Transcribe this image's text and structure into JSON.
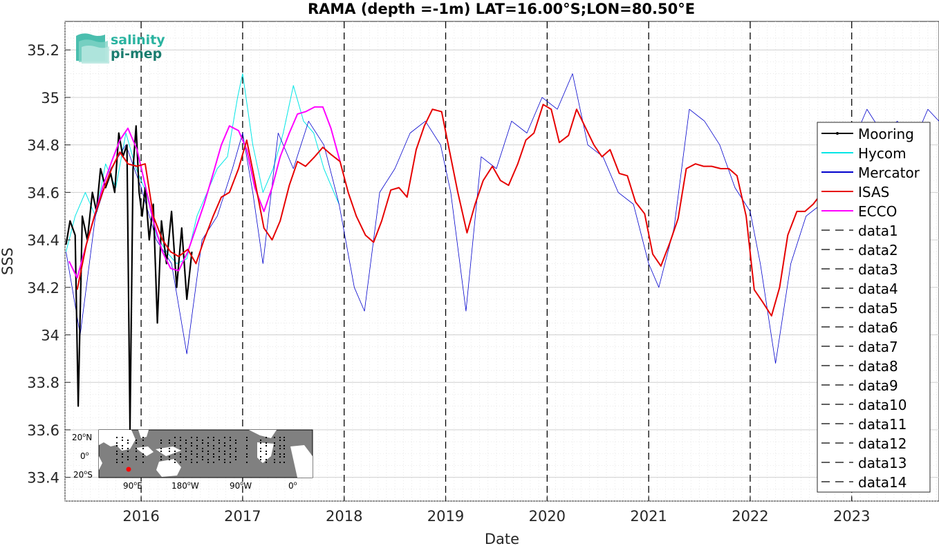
{
  "chart_data": {
    "type": "line",
    "title": "RAMA (depth =-1m) LAT=16.00°S;LON=80.50°E",
    "xlabel": "Date",
    "ylabel": "SSS",
    "xlim": [
      2015.25,
      2023.86
    ],
    "ylim": [
      33.3,
      35.32
    ],
    "x_tick_labels": [
      "2016",
      "2017",
      "2018",
      "2019",
      "2020",
      "2021",
      "2022",
      "2023"
    ],
    "x_ticks": [
      2016,
      2017,
      2018,
      2019,
      2020,
      2021,
      2022,
      2023
    ],
    "y_ticks": [
      33.4,
      33.6,
      33.8,
      34,
      34.2,
      34.4,
      34.6,
      34.8,
      35,
      35.2
    ],
    "y_tick_labels": [
      "33.4",
      "33.6",
      "33.8",
      "34",
      "34.2",
      "34.4",
      "34.6",
      "34.8",
      "35",
      "35.2"
    ],
    "grid": true,
    "legend_position": "right",
    "year_dashed_lines": [
      2016,
      2017,
      2018,
      2019,
      2020,
      2021,
      2022,
      2023
    ],
    "series": [
      {
        "name": "Mooring",
        "color": "#000000",
        "x": [
          2015.26,
          2015.3,
          2015.35,
          2015.38,
          2015.42,
          2015.47,
          2015.52,
          2015.56,
          2015.6,
          2015.65,
          2015.7,
          2015.74,
          2015.78,
          2015.82,
          2015.86,
          2015.89,
          2015.92,
          2015.95,
          2015.98,
          2016.01,
          2016.04,
          2016.08,
          2016.12,
          2016.16,
          2016.2,
          2016.25,
          2016.3,
          2016.35,
          2016.4,
          2016.45,
          2016.5
        ],
        "y": [
          34.38,
          34.48,
          34.42,
          33.7,
          34.5,
          34.4,
          34.6,
          34.52,
          34.7,
          34.62,
          34.68,
          34.6,
          34.85,
          34.75,
          34.8,
          33.6,
          34.7,
          34.88,
          34.6,
          34.5,
          34.62,
          34.4,
          34.55,
          34.05,
          34.48,
          34.3,
          34.52,
          34.2,
          34.45,
          34.15,
          34.35
        ]
      },
      {
        "name": "Hycom",
        "color": "#00e6e6",
        "x": [
          2015.26,
          2015.35,
          2015.45,
          2015.55,
          2015.65,
          2015.75,
          2015.85,
          2015.95,
          2016.05,
          2016.15,
          2016.25,
          2016.35,
          2016.45,
          2016.55,
          2016.65,
          2016.75,
          2016.85,
          2016.95,
          2017.0,
          2017.1,
          2017.2,
          2017.3,
          2017.4,
          2017.5,
          2017.6,
          2017.7,
          2017.8,
          2017.9,
          2017.95
        ],
        "y": [
          34.35,
          34.5,
          34.6,
          34.5,
          34.72,
          34.62,
          34.85,
          34.7,
          34.6,
          34.42,
          34.35,
          34.3,
          34.32,
          34.5,
          34.6,
          34.7,
          34.75,
          35.0,
          35.1,
          34.8,
          34.6,
          34.7,
          34.85,
          35.05,
          34.9,
          34.85,
          34.7,
          34.6,
          34.55
        ]
      },
      {
        "name": "Mercator",
        "color": "#0000cc",
        "x": [
          2015.26,
          2015.4,
          2015.55,
          2015.7,
          2015.85,
          2016.0,
          2016.15,
          2016.3,
          2016.45,
          2016.6,
          2016.75,
          2016.9,
          2017.0,
          2017.1,
          2017.2,
          2017.35,
          2017.5,
          2017.65,
          2017.8,
          2017.95,
          2018.1,
          2018.2,
          2018.35,
          2018.5,
          2018.65,
          2018.8,
          2018.95,
          2019.05,
          2019.2,
          2019.35,
          2019.5,
          2019.65,
          2019.8,
          2019.95,
          2020.1,
          2020.25,
          2020.4,
          2020.55,
          2020.7,
          2020.85,
          2021.0,
          2021.1,
          2021.25,
          2021.4,
          2021.55,
          2021.7,
          2021.85,
          2022.0,
          2022.1,
          2022.25,
          2022.4,
          2022.55,
          2022.7,
          2022.85,
          2023.0,
          2023.15,
          2023.3,
          2023.45,
          2023.6,
          2023.75,
          2023.86
        ],
        "y": [
          34.35,
          34.0,
          34.5,
          34.7,
          34.8,
          34.62,
          34.4,
          34.3,
          33.92,
          34.4,
          34.5,
          34.7,
          34.85,
          34.6,
          34.3,
          34.85,
          34.7,
          34.9,
          34.8,
          34.55,
          34.2,
          34.1,
          34.6,
          34.7,
          34.85,
          34.9,
          34.8,
          34.6,
          34.1,
          34.75,
          34.7,
          34.9,
          34.85,
          35.0,
          34.95,
          35.1,
          34.8,
          34.75,
          34.6,
          34.55,
          34.3,
          34.2,
          34.45,
          34.95,
          34.9,
          34.8,
          34.62,
          34.52,
          34.3,
          33.88,
          34.3,
          34.5,
          34.55,
          34.6,
          34.8,
          34.95,
          34.85,
          34.9,
          34.8,
          34.95,
          34.9
        ]
      },
      {
        "name": "ISAS",
        "color": "#e60000",
        "x": [
          2015.37,
          2015.46,
          2015.54,
          2015.62,
          2015.71,
          2015.79,
          2015.87,
          2015.96,
          2016.04,
          2016.12,
          2016.21,
          2016.29,
          2016.37,
          2016.46,
          2016.54,
          2016.62,
          2016.71,
          2016.79,
          2016.87,
          2016.96,
          2017.04,
          2017.12,
          2017.21,
          2017.29,
          2017.37,
          2017.46,
          2017.54,
          2017.62,
          2017.71,
          2017.79,
          2017.87,
          2017.96,
          2018.04,
          2018.12,
          2018.21,
          2018.29,
          2018.37,
          2018.46,
          2018.54,
          2018.62,
          2018.71,
          2018.79,
          2018.87,
          2018.96,
          2019.04,
          2019.12,
          2019.21,
          2019.29,
          2019.37,
          2019.46,
          2019.54,
          2019.62,
          2019.71,
          2019.79,
          2019.87,
          2019.96,
          2020.04,
          2020.12,
          2020.21,
          2020.29,
          2020.37,
          2020.46,
          2020.54,
          2020.62,
          2020.71,
          2020.79,
          2020.87,
          2020.96,
          2021.04,
          2021.12,
          2021.21,
          2021.29,
          2021.37,
          2021.46,
          2021.54,
          2021.62,
          2021.71,
          2021.79,
          2021.87,
          2021.96,
          2022.04,
          2022.12,
          2022.21,
          2022.29,
          2022.37,
          2022.46,
          2022.54,
          2022.62,
          2022.71,
          2022.79,
          2022.87
        ],
        "y": [
          34.19,
          34.38,
          34.5,
          34.6,
          34.7,
          34.77,
          34.72,
          34.71,
          34.72,
          34.5,
          34.4,
          34.35,
          34.33,
          34.36,
          34.3,
          34.4,
          34.5,
          34.58,
          34.6,
          34.7,
          34.82,
          34.65,
          34.45,
          34.4,
          34.48,
          34.63,
          34.73,
          34.71,
          34.75,
          34.79,
          34.76,
          34.73,
          34.6,
          34.5,
          34.42,
          34.39,
          34.48,
          34.61,
          34.62,
          34.58,
          34.78,
          34.88,
          34.95,
          34.94,
          34.77,
          34.6,
          34.43,
          34.55,
          34.65,
          34.71,
          34.65,
          34.63,
          34.72,
          34.82,
          34.85,
          34.97,
          34.95,
          34.81,
          34.84,
          34.95,
          34.88,
          34.8,
          34.75,
          34.78,
          34.68,
          34.67,
          34.56,
          34.51,
          34.34,
          34.29,
          34.39,
          34.49,
          34.7,
          34.72,
          34.71,
          34.71,
          34.7,
          34.7,
          34.67,
          34.5,
          34.19,
          34.14,
          34.08,
          34.2,
          34.42,
          34.52,
          34.52,
          34.55,
          34.6,
          34.62,
          34.65
        ]
      },
      {
        "name": "ECCO",
        "color": "#ff00ff",
        "x": [
          2015.29,
          2015.37,
          2015.46,
          2015.54,
          2015.62,
          2015.71,
          2015.79,
          2015.87,
          2015.96,
          2016.04,
          2016.12,
          2016.21,
          2016.29,
          2016.37,
          2016.46,
          2016.54,
          2016.62,
          2016.71,
          2016.79,
          2016.87,
          2016.96,
          2017.04,
          2017.12,
          2017.21,
          2017.29,
          2017.37,
          2017.46,
          2017.54,
          2017.62,
          2017.71,
          2017.79,
          2017.87,
          2017.96
        ],
        "y": [
          34.31,
          34.24,
          34.38,
          34.5,
          34.62,
          34.73,
          34.82,
          34.87,
          34.78,
          34.63,
          34.48,
          34.35,
          34.28,
          34.27,
          34.35,
          34.45,
          34.55,
          34.68,
          34.8,
          34.88,
          34.86,
          34.78,
          34.62,
          34.52,
          34.62,
          34.75,
          34.85,
          34.93,
          34.94,
          34.96,
          34.96,
          34.87,
          34.73
        ]
      }
    ],
    "legend_data_entries": [
      "data1",
      "data2",
      "data3",
      "data4",
      "data5",
      "data6",
      "data7",
      "data8",
      "data9",
      "data10",
      "data11",
      "data12",
      "data13",
      "data14"
    ],
    "inset_map": {
      "lat_labels": [
        "20",
        "N",
        "0",
        "20",
        "S"
      ],
      "lon_labels": [
        "90",
        "E",
        "180",
        "W",
        "90",
        "W",
        "0"
      ],
      "deg_sup": "o",
      "marker_color": "#ff0000"
    }
  },
  "logo": {
    "line1": "salinity",
    "line2": "pi-mep",
    "color1": "#2ab3a0",
    "color2": "#1a7d6f"
  }
}
